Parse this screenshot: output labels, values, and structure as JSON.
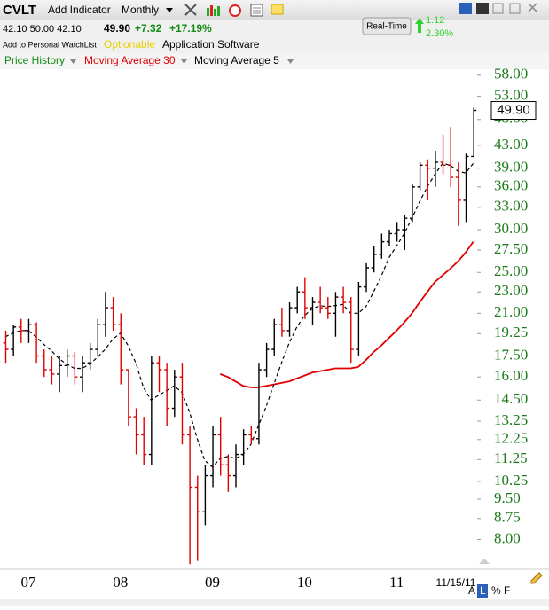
{
  "header": {
    "symbol": "CVLT",
    "add_indicator": "Add Indicator",
    "period": "Monthly",
    "quote": "42.10 50.00 42.10",
    "last": "49.90",
    "change": "+7.32",
    "change_pct": "+17.19%",
    "watchlist": "Add to Personal WatchList",
    "optionable": "Optionable",
    "industry": "Application Software",
    "realtime": "Real-Time",
    "rt_change": "1.12",
    "rt_pct": "2.30%"
  },
  "legend": {
    "price": "Price History",
    "ma30": "Moving Average 30",
    "ma5": "Moving Average 5"
  },
  "footer": {
    "a": "A",
    "l": "L",
    "pct": "%",
    "f": "F"
  },
  "chart_data": {
    "type": "ohlc",
    "log_scale": true,
    "grid": false,
    "categories": [
      null,
      null,
      null,
      "07",
      null,
      null,
      null,
      null,
      null,
      null,
      null,
      null,
      null,
      null,
      null,
      "08",
      null,
      null,
      null,
      null,
      null,
      null,
      null,
      null,
      null,
      null,
      null,
      "09",
      null,
      null,
      null,
      null,
      null,
      null,
      null,
      null,
      null,
      null,
      null,
      "10",
      null,
      null,
      null,
      null,
      null,
      null,
      null,
      null,
      null,
      null,
      null,
      "11",
      null,
      null,
      null,
      null,
      null,
      null,
      null,
      null,
      null,
      null
    ],
    "date_label": "11/15/11",
    "last_price_label": "49.90",
    "ylim": [
      7.1,
      59.5
    ],
    "yticks": [
      {
        "value": 58,
        "label": "58.00"
      },
      {
        "value": 53,
        "label": "53.00"
      },
      {
        "value": 48,
        "label": "48.00"
      },
      {
        "value": 43,
        "label": "43.00"
      },
      {
        "value": 39,
        "label": "39.00"
      },
      {
        "value": 36,
        "label": "36.00"
      },
      {
        "value": 33,
        "label": "33.00"
      },
      {
        "value": 30,
        "label": "30.00"
      },
      {
        "value": 27.5,
        "label": "27.50"
      },
      {
        "value": 25,
        "label": "25.00"
      },
      {
        "value": 23,
        "label": "23.00"
      },
      {
        "value": 21,
        "label": "21.00"
      },
      {
        "value": 19.25,
        "label": "19.25"
      },
      {
        "value": 17.5,
        "label": "17.50"
      },
      {
        "value": 16,
        "label": "16.00"
      },
      {
        "value": 14.5,
        "label": "14.50"
      },
      {
        "value": 13.25,
        "label": "13.25"
      },
      {
        "value": 12.25,
        "label": "12.25"
      },
      {
        "value": 11.25,
        "label": "11.25"
      },
      {
        "value": 10.25,
        "label": "10.25"
      },
      {
        "value": 9.5,
        "label": "9.50"
      },
      {
        "value": 8.75,
        "label": "8.75"
      },
      {
        "value": 8,
        "label": "8.00"
      }
    ],
    "up_color": "#000000",
    "down_color": "#e00000",
    "ohlc": {
      "open": [
        18.5,
        18.0,
        19.8,
        19.5,
        20.0,
        17.5,
        16.5,
        16.2,
        16.8,
        17.5,
        16.0,
        17.0,
        18.0,
        20.0,
        21.5,
        20.0,
        16.5,
        13.5,
        12.5,
        11.5,
        17.0,
        16.5,
        14.0,
        16.0,
        12.5,
        10.0,
        9.0,
        10.5,
        12.5,
        11.0,
        10.5,
        11.5,
        12.5,
        12.3,
        16.5,
        18.0,
        20.0,
        19.5,
        21.5,
        23.0,
        21.5,
        22.0,
        21.5,
        21.0,
        22.5,
        22.0,
        18.0,
        23.5,
        25.5,
        27.0,
        28.5,
        29.5,
        30.0,
        31.5,
        36.0,
        39.5,
        39.0,
        40.0,
        39.5,
        37.5,
        34.0,
        41.0
      ],
      "high": [
        19.5,
        20.0,
        20.5,
        20.5,
        20.2,
        18.0,
        17.5,
        17.5,
        18.0,
        17.8,
        17.5,
        18.5,
        20.5,
        23.0,
        22.5,
        21.0,
        16.5,
        14.0,
        13.5,
        17.5,
        17.5,
        17.0,
        16.5,
        17.0,
        13.0,
        10.5,
        11.0,
        13.0,
        13.5,
        11.5,
        12.0,
        12.8,
        13.0,
        17.0,
        18.5,
        20.5,
        21.5,
        22.0,
        23.5,
        24.5,
        22.5,
        23.5,
        22.5,
        23.0,
        23.5,
        22.5,
        24.0,
        26.0,
        28.0,
        29.5,
        30.0,
        31.0,
        32.0,
        36.5,
        40.0,
        40.5,
        42.0,
        45.0,
        46.5,
        40.0,
        41.5,
        50.5
      ],
      "low": [
        17.0,
        17.5,
        18.5,
        18.5,
        17.0,
        16.0,
        15.5,
        15.0,
        16.0,
        15.5,
        15.0,
        16.5,
        17.5,
        19.0,
        19.5,
        15.5,
        13.0,
        11.5,
        11.0,
        11.0,
        15.0,
        13.0,
        13.5,
        12.0,
        7.2,
        7.3,
        8.5,
        10.0,
        10.5,
        9.8,
        10.0,
        11.0,
        12.0,
        12.0,
        16.0,
        17.5,
        19.0,
        19.0,
        21.0,
        20.5,
        20.0,
        21.0,
        20.5,
        19.0,
        21.0,
        17.0,
        17.5,
        23.0,
        25.0,
        26.5,
        28.0,
        28.5,
        27.5,
        31.0,
        35.5,
        34.0,
        36.0,
        38.0,
        36.0,
        30.5,
        31.0,
        41.0
      ],
      "close": [
        18.0,
        19.8,
        19.5,
        20.0,
        17.5,
        16.5,
        16.2,
        16.8,
        17.5,
        16.0,
        17.0,
        18.0,
        20.0,
        21.5,
        20.0,
        16.5,
        13.5,
        12.5,
        11.5,
        17.0,
        16.5,
        14.0,
        16.0,
        12.5,
        10.0,
        9.0,
        10.5,
        12.5,
        11.0,
        10.5,
        11.5,
        12.5,
        12.3,
        16.5,
        18.0,
        20.0,
        19.5,
        21.5,
        23.0,
        21.5,
        22.0,
        21.5,
        21.0,
        22.5,
        22.0,
        18.0,
        23.5,
        25.5,
        27.0,
        28.5,
        29.5,
        30.0,
        31.5,
        36.0,
        39.5,
        39.0,
        40.0,
        39.5,
        37.5,
        34.0,
        41.0,
        49.9
      ]
    },
    "series": [
      {
        "name": "Moving Average 30",
        "color": "#e00000",
        "dash": false,
        "values": [
          null,
          null,
          null,
          null,
          null,
          null,
          null,
          null,
          null,
          null,
          null,
          null,
          null,
          null,
          null,
          null,
          null,
          null,
          null,
          null,
          null,
          null,
          null,
          null,
          null,
          null,
          null,
          null,
          16.2,
          16.0,
          15.7,
          15.4,
          15.3,
          15.3,
          15.4,
          15.5,
          15.6,
          15.7,
          15.9,
          16.1,
          16.3,
          16.4,
          16.5,
          16.6,
          16.6,
          16.6,
          16.7,
          17.2,
          17.8,
          18.3,
          18.9,
          19.5,
          20.2,
          21.0,
          22.0,
          23.0,
          24.0,
          24.7,
          25.4,
          26.2,
          27.2,
          28.5
        ]
      },
      {
        "name": "Moving Average 5",
        "color": "#000000",
        "dash": true,
        "values": [
          19.0,
          19.3,
          19.5,
          19.5,
          19.0,
          18.4,
          17.9,
          17.3,
          16.9,
          16.6,
          16.6,
          16.9,
          17.4,
          18.0,
          18.8,
          19.3,
          18.3,
          17.0,
          15.3,
          14.5,
          14.8,
          15.1,
          15.4,
          15.0,
          13.8,
          12.3,
          11.2,
          10.9,
          11.3,
          11.4,
          11.3,
          11.5,
          12.0,
          13.0,
          14.1,
          15.5,
          17.0,
          18.5,
          19.8,
          20.8,
          21.4,
          21.7,
          21.6,
          21.7,
          21.8,
          21.0,
          21.0,
          21.6,
          23.0,
          24.6,
          26.6,
          28.0,
          29.5,
          31.5,
          33.8,
          36.0,
          38.0,
          39.8,
          39.5,
          38.5,
          38.2,
          39.8
        ]
      }
    ]
  }
}
